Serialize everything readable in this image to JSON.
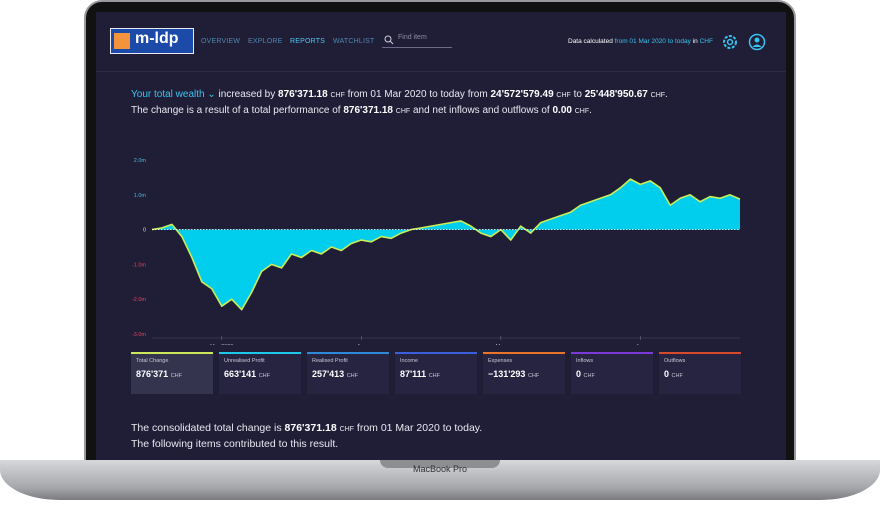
{
  "header": {
    "logo": "m-ldp",
    "nav": [
      "OVERVIEW",
      "EXPLORE",
      "REPORTS",
      "WATCHLIST"
    ],
    "search_placeholder": "Find item",
    "data_calc": {
      "label": "Data calculated",
      "range": "from 01 Mar 2020 to today",
      "in": "in",
      "currency": "CHF"
    }
  },
  "summary": {
    "link": "Your total wealth",
    "t1": "increased by",
    "a1": "876'371.18",
    "c1": "CHF",
    "t2": "from 01 Mar 2020 to today from",
    "a2": "24'572'579.49",
    "c2": "CHF",
    "t3": "to",
    "a3": "25'448'950.67",
    "c3": "CHF",
    "t4": ".",
    "t5": "The change is a result of a total performance of",
    "a4": "876'371.18",
    "c4": "CHF",
    "t6": "and net inflows and outflows of",
    "a5": "0.00",
    "c5": "CHF",
    "t7": "."
  },
  "chart_data": {
    "type": "area",
    "categories": [
      null,
      null,
      null,
      null,
      null,
      null,
      null,
      "Mar 2020",
      null,
      null,
      null,
      null,
      null,
      null,
      null,
      null,
      null,
      null,
      null,
      null,
      null,
      "Apr",
      null,
      null,
      null,
      null,
      null,
      null,
      null,
      null,
      null,
      null,
      null,
      null,
      null,
      "May",
      null,
      null,
      null,
      null,
      null,
      null,
      null,
      null,
      null,
      null,
      null,
      null,
      null,
      "Jun",
      null,
      null,
      null,
      null,
      null,
      null,
      null,
      null,
      null,
      null
    ],
    "values": [
      0,
      50000,
      150000,
      -200000,
      -800000,
      -1500000,
      -1700000,
      -2200000,
      -2000000,
      -2300000,
      -1800000,
      -1200000,
      -1000000,
      -1100000,
      -700000,
      -800000,
      -600000,
      -700000,
      -500000,
      -600000,
      -400000,
      -300000,
      -350000,
      -200000,
      -250000,
      -100000,
      0,
      50000,
      100000,
      150000,
      200000,
      250000,
      100000,
      -100000,
      -200000,
      0,
      -300000,
      100000,
      -100000,
      200000,
      300000,
      400000,
      500000,
      700000,
      800000,
      900000,
      1000000,
      1200000,
      1450000,
      1300000,
      1400000,
      1200000,
      700000,
      900000,
      1000000,
      800000,
      950000,
      900000,
      1000000,
      876371
    ],
    "color": "#c9ee5a",
    "fill": "#00d8f5",
    "ylim": [
      -3000000,
      2000000
    ],
    "yticks": [
      {
        "value": 2000000,
        "label": "2.0m"
      },
      {
        "value": 1000000,
        "label": "1.0m"
      },
      0,
      {
        "value": -1000000,
        "label": "-1.0m"
      },
      {
        "value": -2000000,
        "label": "-2.0m"
      },
      {
        "value": -3000000,
        "label": "-3.0m"
      }
    ]
  },
  "cards": [
    {
      "label": "Total Change",
      "value": "876'371",
      "unit": "CHF"
    },
    {
      "label": "Unrealised Profit",
      "value": "663'141",
      "unit": "CHF"
    },
    {
      "label": "Realised Profit",
      "value": "257'413",
      "unit": "CHF"
    },
    {
      "label": "Income",
      "value": "87'111",
      "unit": "CHF"
    },
    {
      "label": "Expenses",
      "value": "−131'293",
      "unit": "CHF"
    },
    {
      "label": "Inflows",
      "value": "0",
      "unit": "CHF"
    },
    {
      "label": "Outflows",
      "value": "0",
      "unit": "CHF"
    }
  ],
  "footer": {
    "t1": "The consolidated total change is",
    "a1": "876'371.18",
    "c1": "CHF",
    "t2": "from 01 Mar 2020 to today.",
    "t3": "The following items contributed to this result."
  },
  "device_label": "MacBook Pro"
}
